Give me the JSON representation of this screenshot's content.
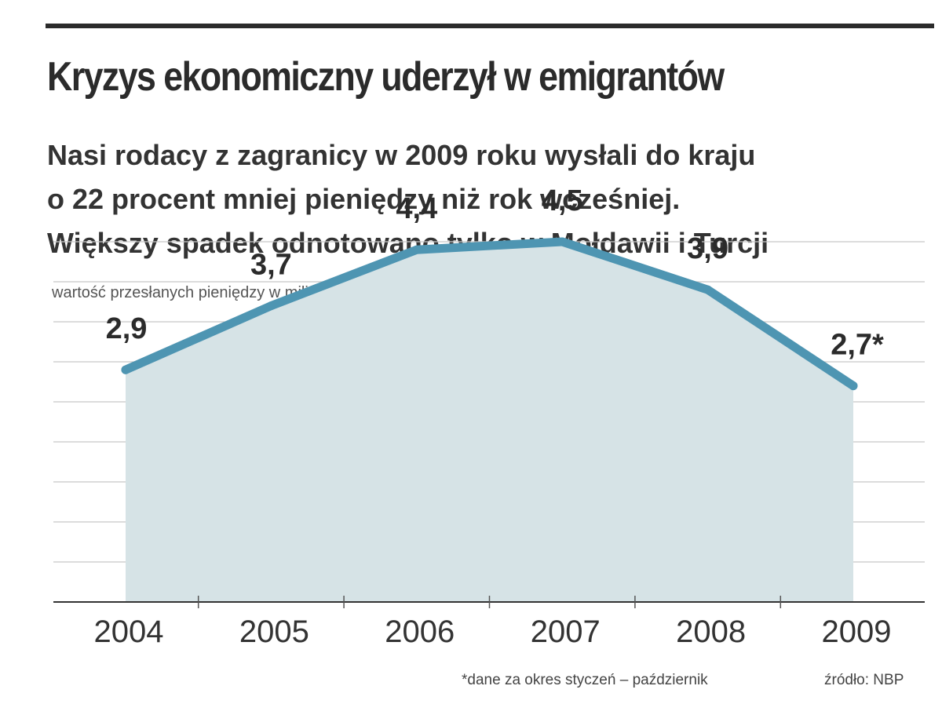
{
  "header": {
    "title": "Kryzys ekonomiczny uderzył w emigrantów",
    "subtitle_lines": [
      "Nasi rodacy z zagranicy w 2009 roku wysłali do kraju",
      "o 22 procent mniej pieniędzy niż rok wcześniej.",
      "Większy spadek odnotowano tylko w Mołdawii i Turcji"
    ]
  },
  "chart_data": {
    "type": "area",
    "ylabel": "wartość przesłanych pieniędzy w miliardach euro",
    "categories": [
      "2004",
      "2005",
      "2006",
      "2007",
      "2008",
      "2009"
    ],
    "values": [
      2.9,
      3.7,
      4.4,
      4.5,
      3.9,
      2.7
    ],
    "value_labels": [
      "2,9",
      "3,7",
      "4,4",
      "4,5",
      "3,9",
      "2,7*"
    ],
    "ylim": [
      0,
      5
    ],
    "grid": true,
    "line_color": "#4e95b2",
    "fill_color": "#d6e3e6",
    "grid_color": "#c8c8c8"
  },
  "footer": {
    "note": "*dane za okres styczeń – październik",
    "source": "źródło: NBP"
  }
}
